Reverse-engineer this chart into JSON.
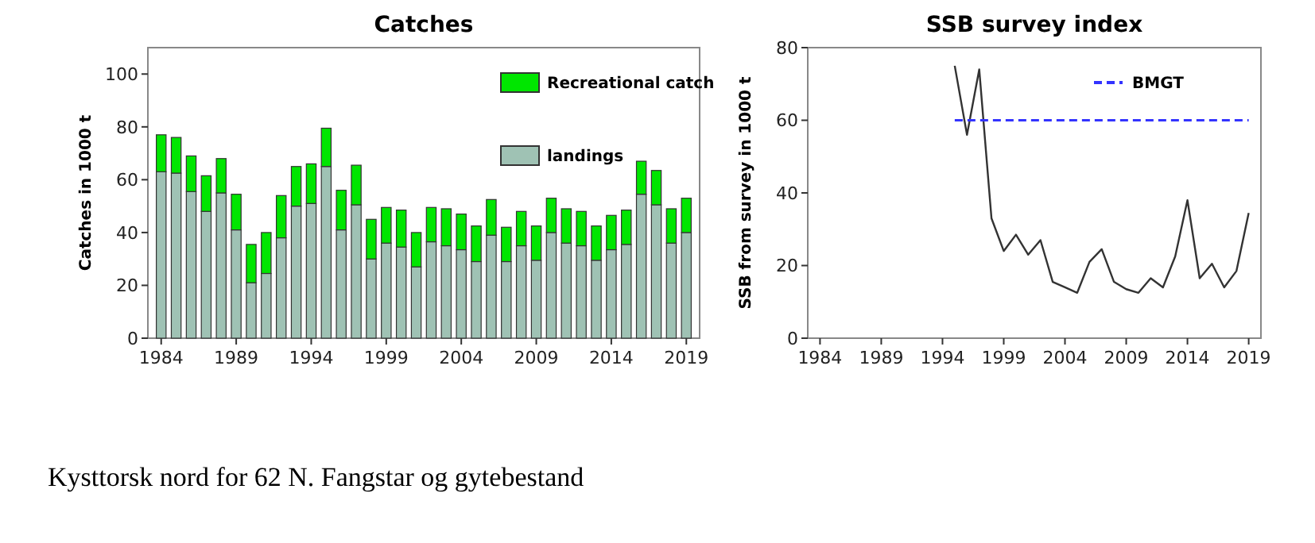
{
  "chart_data": [
    {
      "type": "bar",
      "title": "Catches",
      "ylabel": "Catches in 1000 t",
      "stacked": true,
      "legend": "top right",
      "categories": [
        "1984",
        null,
        null,
        null,
        null,
        "1989",
        null,
        null,
        null,
        null,
        "1994",
        null,
        null,
        null,
        null,
        "1999",
        null,
        null,
        null,
        null,
        "2004",
        null,
        null,
        null,
        null,
        "2009",
        null,
        null,
        null,
        null,
        "2014",
        null,
        null,
        null,
        null,
        "2019"
      ],
      "series": [
        {
          "name": "landings",
          "color": "#9fc2b4",
          "values": [
            63,
            62.5,
            55.5,
            48,
            55,
            41,
            21,
            24.5,
            38,
            50,
            51,
            65,
            41,
            50.5,
            30,
            36,
            34.5,
            27,
            36.5,
            35,
            33.5,
            29,
            39,
            29,
            35,
            29.5,
            40,
            36,
            35,
            29.5,
            33.5,
            35.5,
            54.5,
            50.5,
            36,
            40
          ]
        },
        {
          "name": "Recreational catch",
          "color": "#00e600",
          "values": [
            14,
            13.5,
            13.5,
            13.5,
            13,
            13.5,
            14.5,
            15.5,
            16,
            15,
            15,
            14.5,
            15,
            15,
            15,
            13.5,
            14,
            13,
            13,
            14,
            13.5,
            13.5,
            13.5,
            13,
            13,
            13,
            13,
            13,
            13,
            13,
            13,
            13,
            12.5,
            13,
            13,
            13
          ]
        }
      ],
      "ylim": [
        0,
        110
      ],
      "yticks": [
        0,
        20,
        40,
        60,
        80,
        100
      ],
      "annotations": [
        "Kysttorsk nord for 62 N. Fangstar og gytebestand"
      ]
    },
    {
      "type": "line",
      "title": "SSB survey index",
      "ylabel": "SSB from survey in 1000 t",
      "legend": "top right",
      "xlim": [
        1983,
        2020
      ],
      "xticks": [
        1984,
        1989,
        1994,
        1999,
        2004,
        2009,
        2014,
        2019
      ],
      "ylim": [
        0,
        80
      ],
      "yticks": [
        0,
        20,
        40,
        60,
        80
      ],
      "series": [
        {
          "color": "#333333",
          "x": [
            1995,
            1996,
            1997,
            1998,
            1999,
            2000,
            2001,
            2002,
            2003,
            2004,
            2005,
            2006,
            2007,
            2008,
            2009,
            2010,
            2011,
            2012,
            2013,
            2014,
            2015,
            2016,
            2017,
            2018,
            2019
          ],
          "values": [
            75,
            56,
            74,
            33,
            24,
            28.5,
            23,
            27,
            15.5,
            14,
            12.5,
            21,
            24.5,
            15.5,
            13.5,
            12.5,
            16.5,
            14,
            22.5,
            38,
            16.5,
            20.5,
            14,
            18.5,
            34.5
          ]
        },
        {
          "name": "BMGT",
          "color": "#3333ff",
          "line_style": "dashed",
          "x": [
            1995,
            2019
          ],
          "values": [
            60,
            60
          ]
        }
      ]
    }
  ]
}
